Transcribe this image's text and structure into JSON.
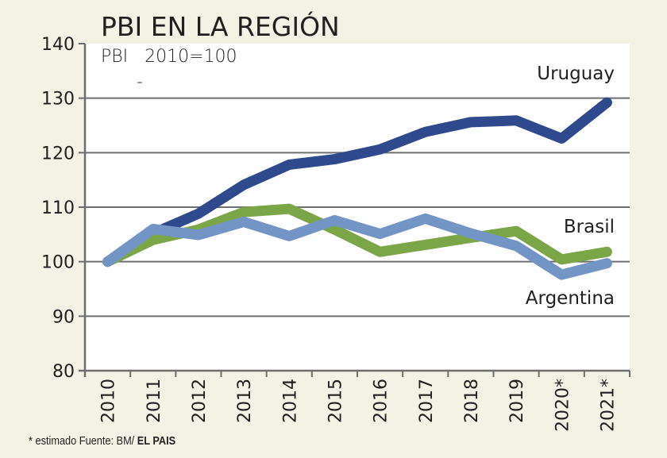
{
  "chart_data": {
    "type": "line",
    "title": "PBI EN LA REGIÓN",
    "subtitle": "PBI   2010=100",
    "subtitle_mark": "-",
    "xlabel": "",
    "ylabel": "",
    "categories": [
      "2010",
      "2011",
      "2012",
      "2013",
      "2014",
      "2015",
      "2016",
      "2017",
      "2018",
      "2019",
      "2020*",
      "2021*"
    ],
    "ylim": [
      80,
      140
    ],
    "yticks": [
      80,
      90,
      100,
      110,
      120,
      130,
      140
    ],
    "ytick_labels": [
      "80",
      "90",
      "100",
      "110",
      "120",
      "130",
      "140"
    ],
    "grid": true,
    "legend": "inline labels at right",
    "series": [
      {
        "name": "Uruguay",
        "color": "#2e4a8c",
        "values": [
          100,
          105.2,
          108.8,
          114.1,
          117.8,
          118.8,
          120.6,
          123.8,
          125.6,
          125.9,
          122.6,
          129.2
        ]
      },
      {
        "name": "Brasil",
        "color": "#7aa648",
        "values": [
          100,
          104.0,
          105.9,
          109.1,
          109.7,
          105.9,
          101.8,
          103.1,
          104.4,
          105.6,
          100.4,
          101.8
        ]
      },
      {
        "name": "Argentina",
        "color": "#7395c6",
        "values": [
          100,
          106.0,
          104.9,
          107.3,
          104.7,
          107.6,
          105.1,
          107.9,
          105.2,
          102.9,
          97.6,
          99.7
        ]
      }
    ]
  },
  "footer": {
    "note": "* estimado  Fuente: BM/ ",
    "brand": "EL PAIS"
  },
  "colors": {
    "background": "#f4f2e4",
    "plot_background": "#ffffff",
    "grid": "#6d6e70",
    "text": "#231f20"
  }
}
